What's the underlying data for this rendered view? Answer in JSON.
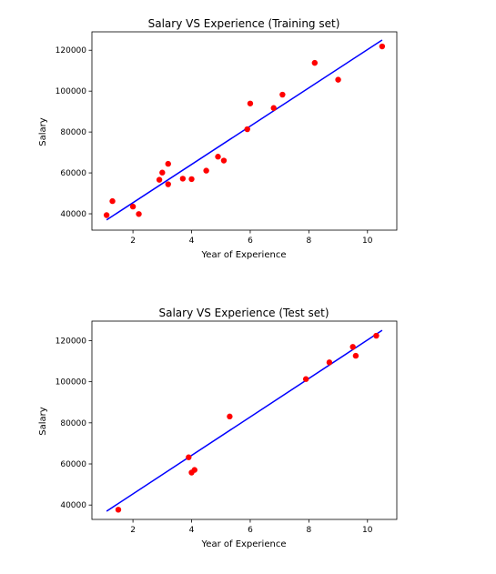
{
  "chart_data": [
    {
      "type": "scatter",
      "title": "Salary VS Experience (Training set)",
      "xlabel": "Year of Experience",
      "ylabel": "Salary",
      "xlim": [
        0.6,
        11.0
      ],
      "ylim": [
        32000,
        129000
      ],
      "xticks": [
        2,
        4,
        6,
        8,
        10
      ],
      "yticks": [
        40000,
        60000,
        80000,
        100000,
        120000
      ],
      "point_color": "#ff0000",
      "line_color": "#0000ff",
      "grid": false,
      "points": [
        [
          1.1,
          39343
        ],
        [
          1.3,
          46205
        ],
        [
          2.0,
          43525
        ],
        [
          2.2,
          39891
        ],
        [
          2.9,
          56642
        ],
        [
          3.0,
          60150
        ],
        [
          3.2,
          54445
        ],
        [
          3.2,
          64445
        ],
        [
          3.7,
          57189
        ],
        [
          4.0,
          56957
        ],
        [
          4.5,
          61111
        ],
        [
          4.9,
          67938
        ],
        [
          5.1,
          66029
        ],
        [
          5.9,
          81363
        ],
        [
          6.0,
          93940
        ],
        [
          6.8,
          91738
        ],
        [
          7.1,
          98273
        ],
        [
          8.2,
          113812
        ],
        [
          9.0,
          105582
        ],
        [
          10.5,
          121872
        ]
      ],
      "regression_line": [
        [
          1.1,
          37000
        ],
        [
          10.5,
          125000
        ]
      ]
    },
    {
      "type": "scatter",
      "title": "Salary VS Experience (Test set)",
      "xlabel": "Year of Experience",
      "ylabel": "Salary",
      "xlim": [
        0.6,
        11.0
      ],
      "ylim": [
        33000,
        129500
      ],
      "xticks": [
        2,
        4,
        6,
        8,
        10
      ],
      "yticks": [
        40000,
        60000,
        80000,
        100000,
        120000
      ],
      "point_color": "#ff0000",
      "line_color": "#0000ff",
      "grid": false,
      "points": [
        [
          1.5,
          37731
        ],
        [
          3.9,
          63218
        ],
        [
          4.0,
          55794
        ],
        [
          4.1,
          57081
        ],
        [
          5.3,
          83088
        ],
        [
          7.9,
          101302
        ],
        [
          8.7,
          109431
        ],
        [
          9.5,
          116969
        ],
        [
          9.6,
          112635
        ],
        [
          10.3,
          122391
        ]
      ],
      "regression_line": [
        [
          1.1,
          37000
        ],
        [
          10.5,
          125000
        ]
      ]
    }
  ]
}
